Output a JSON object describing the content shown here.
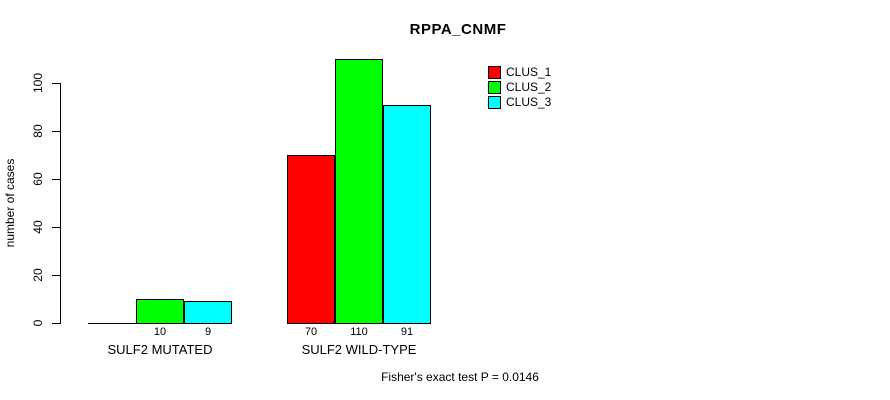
{
  "chart_data": {
    "type": "bar",
    "title": "RPPA_CNMF",
    "ylabel": "number of cases",
    "xlabel": "",
    "categories": [
      "SULF2 MUTATED",
      "SULF2 WILD-TYPE"
    ],
    "series": [
      {
        "name": "CLUS_1",
        "color": "#ff0000",
        "values": [
          0,
          70
        ]
      },
      {
        "name": "CLUS_2",
        "color": "#00ff00",
        "values": [
          10,
          110
        ]
      },
      {
        "name": "CLUS_3",
        "color": "#00ffff",
        "values": [
          9,
          91
        ]
      }
    ],
    "bar_value_labels": [
      [
        "",
        "10",
        "9"
      ],
      [
        "70",
        "110",
        "91"
      ]
    ],
    "yticks": [
      0,
      20,
      40,
      60,
      80,
      100
    ],
    "ylim": [
      0,
      110
    ],
    "grid": false,
    "legend": {
      "position": "top-right",
      "entries": [
        "CLUS_1",
        "CLUS_2",
        "CLUS_3"
      ],
      "colors": [
        "#ff0000",
        "#00ff00",
        "#00ffff"
      ]
    },
    "annotation": "Fisher's exact test P = 0.0146",
    "bar_border_color": "#000000",
    "background": "#ffffff"
  }
}
